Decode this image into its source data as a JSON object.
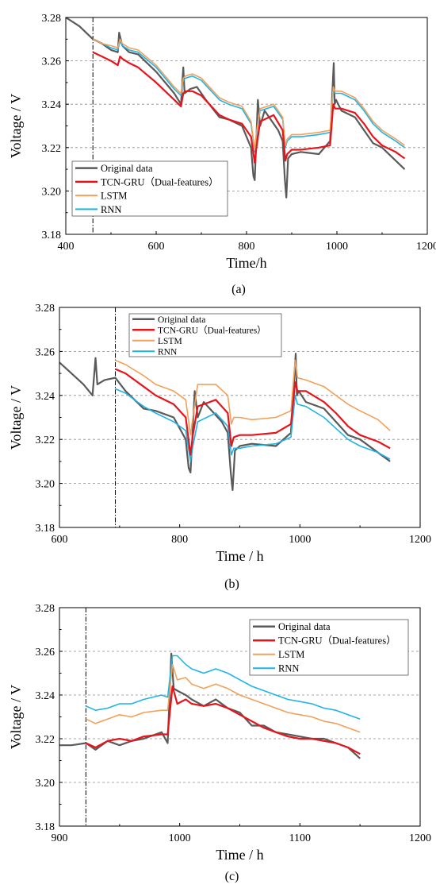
{
  "figure": {
    "panels": [
      "(a)",
      "(b)",
      "(c)"
    ]
  },
  "colors": {
    "original": "#5a5a5a",
    "tcn_gru": "#e8141c",
    "lstm": "#f2a05a",
    "rnn": "#1fb4e6",
    "grid": "#8c8c8c",
    "axis": "#000000"
  },
  "chart_data": [
    {
      "type": "line",
      "panel_label": "(a)",
      "xlabel": "Time/h",
      "ylabel": "Voltage / V",
      "xlim": [
        400,
        1200
      ],
      "ylim": [
        3.18,
        3.28
      ],
      "xticks": [
        "400",
        "600",
        "800",
        "1000",
        "1200"
      ],
      "yticks": [
        "3.18",
        "3.20",
        "3.22",
        "3.24",
        "3.26",
        "3.28"
      ],
      "grid": "horizontal dashed",
      "legend": "bottom-left",
      "split_x": 460,
      "series": [
        {
          "name": "Original data",
          "color_key": "original",
          "x": [
            400,
            430,
            460,
            480,
            500,
            515,
            518,
            525,
            540,
            560,
            600,
            640,
            655,
            660,
            663,
            675,
            690,
            710,
            740,
            760,
            790,
            810,
            815,
            818,
            820,
            825,
            830,
            840,
            870,
            880,
            885,
            888,
            892,
            900,
            920,
            960,
            985,
            993,
            995,
            998,
            1010,
            1040,
            1060,
            1080,
            1100,
            1130,
            1150
          ],
          "y": [
            3.28,
            3.276,
            3.27,
            3.268,
            3.265,
            3.264,
            3.273,
            3.267,
            3.264,
            3.263,
            3.255,
            3.245,
            3.24,
            3.257,
            3.245,
            3.247,
            3.248,
            3.242,
            3.234,
            3.233,
            3.23,
            3.22,
            3.207,
            3.205,
            3.215,
            3.242,
            3.23,
            3.237,
            3.228,
            3.223,
            3.205,
            3.197,
            3.215,
            3.217,
            3.218,
            3.217,
            3.223,
            3.259,
            3.24,
            3.242,
            3.237,
            3.234,
            3.228,
            3.222,
            3.22,
            3.214,
            3.21
          ]
        },
        {
          "name": "TCN-GRU（Dual-features）",
          "color_key": "tcn_gru",
          "x": [
            460,
            480,
            500,
            515,
            520,
            525,
            540,
            560,
            600,
            640,
            655,
            660,
            665,
            680,
            700,
            740,
            760,
            790,
            810,
            818,
            822,
            830,
            860,
            880,
            886,
            890,
            900,
            920,
            960,
            985,
            992,
            996,
            1010,
            1040,
            1060,
            1080,
            1100,
            1130,
            1150
          ],
          "y": [
            3.264,
            3.262,
            3.26,
            3.258,
            3.262,
            3.261,
            3.259,
            3.257,
            3.25,
            3.242,
            3.239,
            3.245,
            3.246,
            3.246,
            3.244,
            3.235,
            3.233,
            3.231,
            3.225,
            3.213,
            3.22,
            3.232,
            3.235,
            3.228,
            3.214,
            3.217,
            3.219,
            3.219,
            3.22,
            3.221,
            3.24,
            3.238,
            3.238,
            3.236,
            3.231,
            3.225,
            3.221,
            3.218,
            3.215
          ]
        },
        {
          "name": "LSTM",
          "color_key": "lstm",
          "x": [
            460,
            480,
            500,
            515,
            520,
            525,
            540,
            560,
            600,
            640,
            655,
            660,
            665,
            680,
            700,
            740,
            760,
            790,
            810,
            818,
            822,
            830,
            860,
            880,
            886,
            890,
            900,
            920,
            960,
            985,
            992,
            996,
            1010,
            1040,
            1060,
            1080,
            1100,
            1130,
            1150
          ],
          "y": [
            3.27,
            3.268,
            3.267,
            3.266,
            3.27,
            3.268,
            3.266,
            3.265,
            3.258,
            3.248,
            3.245,
            3.252,
            3.253,
            3.254,
            3.252,
            3.243,
            3.241,
            3.239,
            3.232,
            3.219,
            3.227,
            3.238,
            3.24,
            3.234,
            3.221,
            3.224,
            3.226,
            3.226,
            3.227,
            3.228,
            3.248,
            3.246,
            3.246,
            3.243,
            3.238,
            3.232,
            3.228,
            3.224,
            3.221
          ]
        },
        {
          "name": "RNN",
          "color_key": "rnn",
          "x": [
            460,
            480,
            500,
            515,
            520,
            525,
            540,
            560,
            600,
            640,
            655,
            660,
            665,
            680,
            700,
            740,
            760,
            790,
            810,
            818,
            822,
            830,
            860,
            880,
            886,
            890,
            900,
            920,
            960,
            985,
            992,
            996,
            1010,
            1040,
            1060,
            1080,
            1100,
            1130,
            1150
          ],
          "y": [
            3.27,
            3.268,
            3.266,
            3.265,
            3.269,
            3.267,
            3.265,
            3.264,
            3.257,
            3.247,
            3.244,
            3.251,
            3.252,
            3.253,
            3.251,
            3.242,
            3.24,
            3.238,
            3.231,
            3.218,
            3.226,
            3.237,
            3.239,
            3.233,
            3.22,
            3.223,
            3.225,
            3.225,
            3.226,
            3.227,
            3.247,
            3.245,
            3.245,
            3.242,
            3.237,
            3.231,
            3.227,
            3.223,
            3.22
          ]
        }
      ]
    },
    {
      "type": "line",
      "panel_label": "(b)",
      "xlabel": "Time / h",
      "ylabel": "Voltage / V",
      "xlim": [
        600,
        1200
      ],
      "ylim": [
        3.18,
        3.28
      ],
      "xticks": [
        "600",
        "800",
        "1000",
        "1200"
      ],
      "yticks": [
        "3.18",
        "3.20",
        "3.22",
        "3.24",
        "3.26",
        "3.28"
      ],
      "grid": "horizontal dashed",
      "legend": "top",
      "split_x": 693,
      "series": [
        {
          "name": "Original data",
          "color_key": "original",
          "x": [
            600,
            620,
            640,
            655,
            660,
            663,
            675,
            693,
            710,
            740,
            760,
            790,
            810,
            815,
            818,
            820,
            825,
            830,
            840,
            870,
            880,
            885,
            888,
            892,
            900,
            920,
            960,
            985,
            993,
            995,
            998,
            1010,
            1040,
            1060,
            1080,
            1100,
            1130,
            1150
          ],
          "y": [
            3.255,
            3.25,
            3.245,
            3.24,
            3.257,
            3.245,
            3.247,
            3.248,
            3.242,
            3.234,
            3.233,
            3.23,
            3.22,
            3.207,
            3.205,
            3.215,
            3.242,
            3.23,
            3.237,
            3.228,
            3.223,
            3.205,
            3.197,
            3.215,
            3.217,
            3.218,
            3.217,
            3.223,
            3.259,
            3.24,
            3.242,
            3.237,
            3.234,
            3.228,
            3.222,
            3.22,
            3.214,
            3.21
          ]
        },
        {
          "name": "TCN-GRU（Dual-features）",
          "color_key": "tcn_gru",
          "x": [
            693,
            710,
            740,
            760,
            790,
            810,
            818,
            822,
            830,
            860,
            880,
            886,
            890,
            900,
            920,
            960,
            985,
            992,
            996,
            1010,
            1040,
            1060,
            1080,
            1100,
            1130,
            1150
          ],
          "y": [
            3.252,
            3.25,
            3.244,
            3.24,
            3.236,
            3.23,
            3.213,
            3.222,
            3.235,
            3.238,
            3.232,
            3.217,
            3.221,
            3.222,
            3.222,
            3.223,
            3.227,
            3.246,
            3.242,
            3.242,
            3.237,
            3.232,
            3.226,
            3.222,
            3.219,
            3.216
          ]
        },
        {
          "name": "LSTM",
          "color_key": "lstm",
          "x": [
            693,
            710,
            740,
            760,
            790,
            810,
            818,
            822,
            830,
            860,
            880,
            886,
            890,
            900,
            920,
            960,
            985,
            992,
            996,
            1010,
            1040,
            1060,
            1080,
            1100,
            1130,
            1150
          ],
          "y": [
            3.256,
            3.254,
            3.249,
            3.245,
            3.242,
            3.238,
            3.222,
            3.23,
            3.245,
            3.245,
            3.24,
            3.227,
            3.23,
            3.23,
            3.229,
            3.23,
            3.233,
            3.256,
            3.248,
            3.247,
            3.244,
            3.24,
            3.236,
            3.233,
            3.229,
            3.224
          ]
        },
        {
          "name": "RNN",
          "color_key": "rnn",
          "x": [
            693,
            710,
            740,
            760,
            790,
            810,
            818,
            822,
            830,
            860,
            880,
            886,
            890,
            900,
            920,
            960,
            985,
            992,
            996,
            1010,
            1040,
            1060,
            1080,
            1100,
            1130,
            1150
          ],
          "y": [
            3.243,
            3.241,
            3.235,
            3.232,
            3.228,
            3.224,
            3.21,
            3.217,
            3.228,
            3.232,
            3.226,
            3.213,
            3.216,
            3.216,
            3.217,
            3.218,
            3.221,
            3.24,
            3.236,
            3.235,
            3.23,
            3.225,
            3.22,
            3.217,
            3.214,
            3.211
          ]
        }
      ]
    },
    {
      "type": "line",
      "panel_label": "(c)",
      "xlabel": "Time / h",
      "ylabel": "Voltage / V",
      "xlim": [
        900,
        1200
      ],
      "ylim": [
        3.18,
        3.28
      ],
      "xticks": [
        "900",
        "1000",
        "1100",
        "1200"
      ],
      "yticks": [
        "3.18",
        "3.20",
        "3.22",
        "3.24",
        "3.26",
        "3.28"
      ],
      "grid": "horizontal dashed",
      "legend": "top-right",
      "split_x": 922,
      "series": [
        {
          "name": "Original data",
          "color_key": "original",
          "x": [
            900,
            910,
            922,
            930,
            940,
            950,
            960,
            970,
            985,
            990,
            993,
            995,
            998,
            1005,
            1010,
            1020,
            1030,
            1040,
            1050,
            1060,
            1070,
            1080,
            1090,
            1100,
            1110,
            1120,
            1130,
            1140,
            1150
          ],
          "y": [
            3.217,
            3.217,
            3.218,
            3.215,
            3.219,
            3.217,
            3.219,
            3.22,
            3.223,
            3.218,
            3.259,
            3.243,
            3.242,
            3.24,
            3.238,
            3.235,
            3.238,
            3.234,
            3.232,
            3.226,
            3.226,
            3.223,
            3.222,
            3.221,
            3.22,
            3.22,
            3.218,
            3.216,
            3.211
          ]
        },
        {
          "name": "TCN-GRU（Dual-features）",
          "color_key": "tcn_gru",
          "x": [
            922,
            930,
            940,
            950,
            960,
            970,
            985,
            990,
            994,
            998,
            1005,
            1010,
            1020,
            1030,
            1040,
            1050,
            1060,
            1070,
            1080,
            1090,
            1100,
            1110,
            1120,
            1130,
            1140,
            1150
          ],
          "y": [
            3.218,
            3.216,
            3.219,
            3.22,
            3.219,
            3.221,
            3.222,
            3.222,
            3.244,
            3.236,
            3.238,
            3.236,
            3.235,
            3.236,
            3.234,
            3.231,
            3.228,
            3.225,
            3.223,
            3.221,
            3.22,
            3.22,
            3.219,
            3.218,
            3.216,
            3.213
          ]
        },
        {
          "name": "LSTM",
          "color_key": "lstm",
          "x": [
            922,
            930,
            940,
            950,
            960,
            970,
            985,
            990,
            994,
            998,
            1005,
            1010,
            1020,
            1030,
            1040,
            1050,
            1060,
            1070,
            1080,
            1090,
            1100,
            1110,
            1120,
            1130,
            1140,
            1150
          ],
          "y": [
            3.229,
            3.227,
            3.229,
            3.231,
            3.23,
            3.232,
            3.233,
            3.233,
            3.254,
            3.247,
            3.248,
            3.245,
            3.243,
            3.245,
            3.243,
            3.24,
            3.238,
            3.236,
            3.234,
            3.232,
            3.231,
            3.23,
            3.228,
            3.227,
            3.225,
            3.223
          ]
        },
        {
          "name": "RNN",
          "color_key": "rnn",
          "x": [
            922,
            930,
            940,
            950,
            960,
            970,
            985,
            990,
            994,
            998,
            1005,
            1010,
            1020,
            1030,
            1040,
            1050,
            1060,
            1070,
            1080,
            1090,
            1100,
            1110,
            1120,
            1130,
            1140,
            1150
          ],
          "y": [
            3.235,
            3.233,
            3.234,
            3.236,
            3.236,
            3.238,
            3.24,
            3.239,
            3.258,
            3.258,
            3.254,
            3.252,
            3.25,
            3.252,
            3.25,
            3.247,
            3.244,
            3.242,
            3.24,
            3.238,
            3.237,
            3.236,
            3.234,
            3.233,
            3.231,
            3.229
          ]
        }
      ]
    }
  ]
}
